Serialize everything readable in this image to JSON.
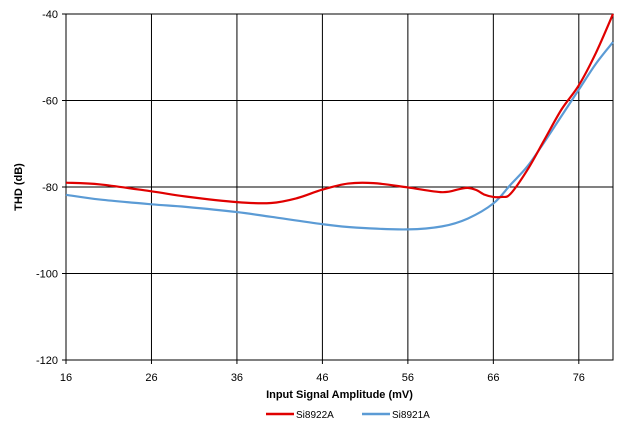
{
  "chart_data": {
    "type": "line",
    "title": "",
    "xlabel": "Input Signal Amplitude (mV)",
    "ylabel": "THD (dB)",
    "xlim": [
      16,
      80
    ],
    "ylim": [
      -120,
      -40
    ],
    "x_ticks": [
      16,
      26,
      36,
      46,
      56,
      66,
      76
    ],
    "y_ticks": [
      -40,
      -60,
      -80,
      -100,
      -120
    ],
    "x_tick_labels": [
      "16",
      "26",
      "36",
      "46",
      "56",
      "66",
      "76"
    ],
    "y_tick_labels": [
      "-40",
      "-60",
      "-80",
      "-100",
      "-120"
    ],
    "grid": true,
    "legend_position": "bottom",
    "series": [
      {
        "name": "Si8922A",
        "color": "#e00000",
        "x": [
          16,
          20,
          26,
          30,
          36,
          40,
          43,
          46,
          49,
          52,
          56,
          60,
          62,
          63,
          64,
          65,
          66,
          67,
          68,
          70,
          72,
          74,
          76,
          78,
          80
        ],
        "y": [
          -79,
          -79.4,
          -81,
          -82.2,
          -83.5,
          -83.7,
          -82.6,
          -80.6,
          -79.2,
          -79.1,
          -80.1,
          -81.2,
          -80.5,
          -80.2,
          -80.7,
          -81.8,
          -82.3,
          -82.3,
          -81.6,
          -76,
          -69,
          -62,
          -56.5,
          -49,
          -40
        ]
      },
      {
        "name": "Si8921A",
        "color": "#5b9bd5",
        "x": [
          16,
          20,
          26,
          30,
          36,
          40,
          46,
          50,
          56,
          60,
          63,
          66,
          68,
          70,
          72,
          74,
          76,
          78,
          80
        ],
        "y": [
          -81.8,
          -82.9,
          -84,
          -84.6,
          -85.8,
          -86.9,
          -88.6,
          -89.4,
          -89.8,
          -89.1,
          -87.3,
          -83.8,
          -79.5,
          -75.2,
          -69.5,
          -63.5,
          -57.5,
          -51.5,
          -46.5
        ]
      }
    ]
  }
}
